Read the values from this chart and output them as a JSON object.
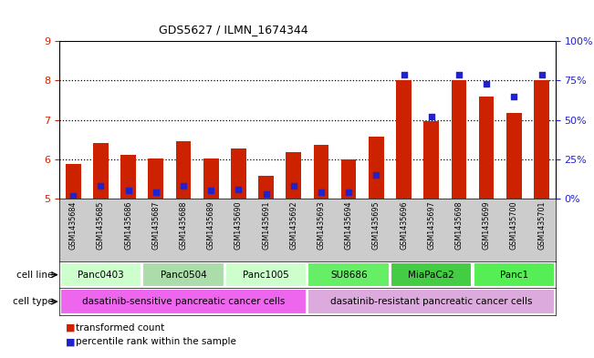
{
  "title": "GDS5627 / ILMN_1674344",
  "samples": [
    "GSM1435684",
    "GSM1435685",
    "GSM1435686",
    "GSM1435687",
    "GSM1435688",
    "GSM1435689",
    "GSM1435690",
    "GSM1435691",
    "GSM1435692",
    "GSM1435693",
    "GSM1435694",
    "GSM1435695",
    "GSM1435696",
    "GSM1435697",
    "GSM1435698",
    "GSM1435699",
    "GSM1435700",
    "GSM1435701"
  ],
  "transformed_counts": [
    5.88,
    6.42,
    6.12,
    6.02,
    6.47,
    6.01,
    6.28,
    5.58,
    6.18,
    6.36,
    6.0,
    6.57,
    8.02,
    6.97,
    8.02,
    7.6,
    7.17,
    8.02
  ],
  "percentile_ranks": [
    2,
    8,
    5,
    4,
    8,
    5,
    6,
    3,
    8,
    4,
    4,
    15,
    79,
    52,
    79,
    73,
    65,
    79
  ],
  "bar_bottom": 5.0,
  "ylim_left": [
    5,
    9
  ],
  "ylim_right": [
    0,
    100
  ],
  "yticks_left": [
    5,
    6,
    7,
    8,
    9
  ],
  "yticks_right": [
    0,
    25,
    50,
    75,
    100
  ],
  "yticklabels_right": [
    "0%",
    "25%",
    "50%",
    "75%",
    "100%"
  ],
  "bar_color": "#cc2200",
  "percentile_color": "#2222cc",
  "cell_lines": [
    {
      "label": "Panc0403",
      "start": 0,
      "end": 3,
      "color": "#ccffcc"
    },
    {
      "label": "Panc0504",
      "start": 3,
      "end": 6,
      "color": "#aaddaa"
    },
    {
      "label": "Panc1005",
      "start": 6,
      "end": 9,
      "color": "#ccffcc"
    },
    {
      "label": "SU8686",
      "start": 9,
      "end": 12,
      "color": "#66ee66"
    },
    {
      "label": "MiaPaCa2",
      "start": 12,
      "end": 15,
      "color": "#44cc44"
    },
    {
      "label": "Panc1",
      "start": 15,
      "end": 18,
      "color": "#55ee55"
    }
  ],
  "cell_types": [
    {
      "label": "dasatinib-sensitive pancreatic cancer cells",
      "start": 0,
      "end": 9,
      "color": "#ee66ee"
    },
    {
      "label": "dasatinib-resistant pancreatic cancer cells",
      "start": 9,
      "end": 18,
      "color": "#ddaadd"
    }
  ],
  "legend_items": [
    {
      "color": "#cc2200",
      "label": "transformed count"
    },
    {
      "color": "#2222cc",
      "label": "percentile rank within the sample"
    }
  ],
  "left_axis_color": "#cc2200",
  "right_axis_color": "#2222cc"
}
